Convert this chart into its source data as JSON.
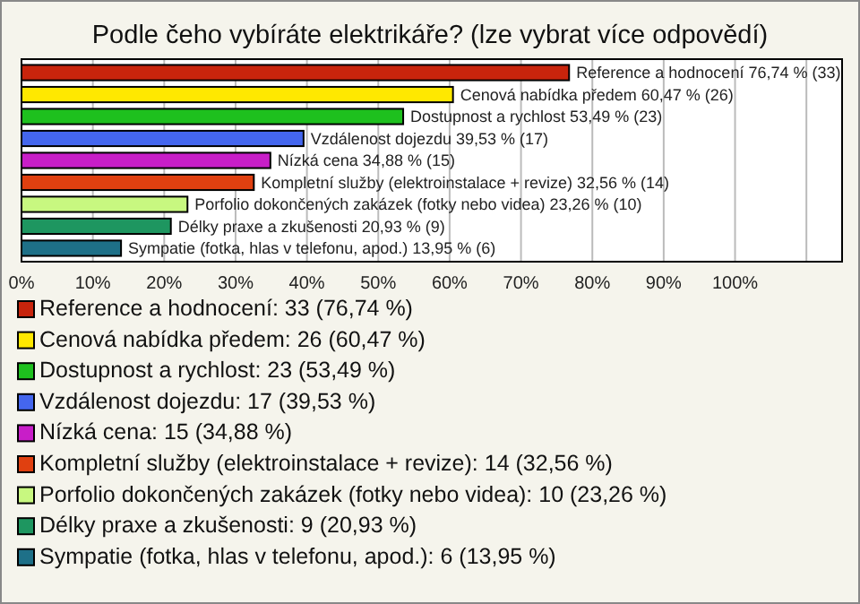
{
  "chart_data": {
    "type": "bar",
    "orientation": "horizontal",
    "title": "Podle čeho vybíráte elektrikáře? (lze vybrat více odpovědí)",
    "categories": [
      null,
      null,
      null,
      null,
      null,
      null,
      null,
      null,
      null
    ],
    "xlim": [
      0,
      115
    ],
    "xticks": [
      {
        "value": 0,
        "label": "0%"
      },
      {
        "value": 10,
        "label": "10%"
      },
      {
        "value": 20,
        "label": "20%"
      },
      {
        "value": 30,
        "label": "30%"
      },
      {
        "value": 40,
        "label": "40%"
      },
      {
        "value": 50,
        "label": "50%"
      },
      {
        "value": 60,
        "label": "60%"
      },
      {
        "value": 70,
        "label": "70%"
      },
      {
        "value": 80,
        "label": "80%"
      },
      {
        "value": 90,
        "label": "90%"
      },
      {
        "value": 100,
        "label": "100%"
      },
      {
        "value": 110,
        "label": null
      }
    ],
    "grid": "x",
    "legend": "bottom",
    "series": [
      {
        "name": "Reference a hodnocení: 33 (76,74 %)",
        "color": "#c8240c",
        "values": [
          76.74,
          null,
          null,
          null,
          null,
          null,
          null,
          null,
          null
        ],
        "value_labels": [
          "Reference a hodnocení 76,74 % (33)",
          null,
          null,
          null,
          null,
          null,
          null,
          null,
          null
        ]
      },
      {
        "name": "Cenová nabídka předem: 26 (60,47 %)",
        "color": "#ffe800",
        "values": [
          null,
          60.47,
          null,
          null,
          null,
          null,
          null,
          null,
          null
        ],
        "value_labels": [
          null,
          "Cenová nabídka předem 60,47 % (26)",
          null,
          null,
          null,
          null,
          null,
          null,
          null
        ]
      },
      {
        "name": "Dostupnost a rychlost: 23 (53,49 %)",
        "color": "#1ec01e",
        "values": [
          null,
          null,
          53.49,
          null,
          null,
          null,
          null,
          null,
          null
        ],
        "value_labels": [
          null,
          null,
          "Dostupnost a rychlost 53,49 % (23)",
          null,
          null,
          null,
          null,
          null,
          null
        ]
      },
      {
        "name": "Vzdálenost dojezdu: 17 (39,53 %)",
        "color": "#4466ee",
        "values": [
          null,
          null,
          null,
          39.53,
          null,
          null,
          null,
          null,
          null
        ],
        "value_labels": [
          null,
          null,
          null,
          "Vzdálenost dojezdu 39,53 % (17)",
          null,
          null,
          null,
          null,
          null
        ]
      },
      {
        "name": "Nízká cena: 15 (34,88 %)",
        "color": "#c81ec8",
        "values": [
          null,
          null,
          null,
          null,
          34.88,
          null,
          null,
          null,
          null
        ],
        "value_labels": [
          null,
          null,
          null,
          null,
          "Nízká cena 34,88 % (15)",
          null,
          null,
          null,
          null
        ]
      },
      {
        "name": "Kompletní služby (elektroinstalace + revize): 14 (32,56 %)",
        "color": "#e04010",
        "values": [
          null,
          null,
          null,
          null,
          null,
          32.56,
          null,
          null,
          null
        ],
        "value_labels": [
          null,
          null,
          null,
          null,
          null,
          "Kompletní služby (elektroinstalace + revize) 32,56 % (14)",
          null,
          null,
          null
        ]
      },
      {
        "name": "Porfolio dokončených zakázek (fotky nebo videa): 10 (23,26 %)",
        "color": "#c8f880",
        "values": [
          null,
          null,
          null,
          null,
          null,
          null,
          23.26,
          null,
          null
        ],
        "value_labels": [
          null,
          null,
          null,
          null,
          null,
          null,
          "Porfolio dokončených zakázek (fotky nebo videa) 23,26 % (10)",
          null,
          null
        ]
      },
      {
        "name": "Délky praxe a zkušenosti: 9 (20,93 %)",
        "color": "#1e9660",
        "values": [
          null,
          null,
          null,
          null,
          null,
          null,
          null,
          20.93,
          null
        ],
        "value_labels": [
          null,
          null,
          null,
          null,
          null,
          null,
          null,
          "Délky praxe a zkušenosti 20,93 % (9)",
          null
        ]
      },
      {
        "name": "Sympatie (fotka, hlas v telefonu, apod.): 6 (13,95 %)",
        "color": "#1e7088",
        "values": [
          null,
          null,
          null,
          null,
          null,
          null,
          null,
          null,
          13.95
        ],
        "value_labels": [
          null,
          null,
          null,
          null,
          null,
          null,
          null,
          null,
          "Sympatie (fotka, hlas v telefonu, apod.) 13,95 % (6)"
        ]
      }
    ]
  }
}
